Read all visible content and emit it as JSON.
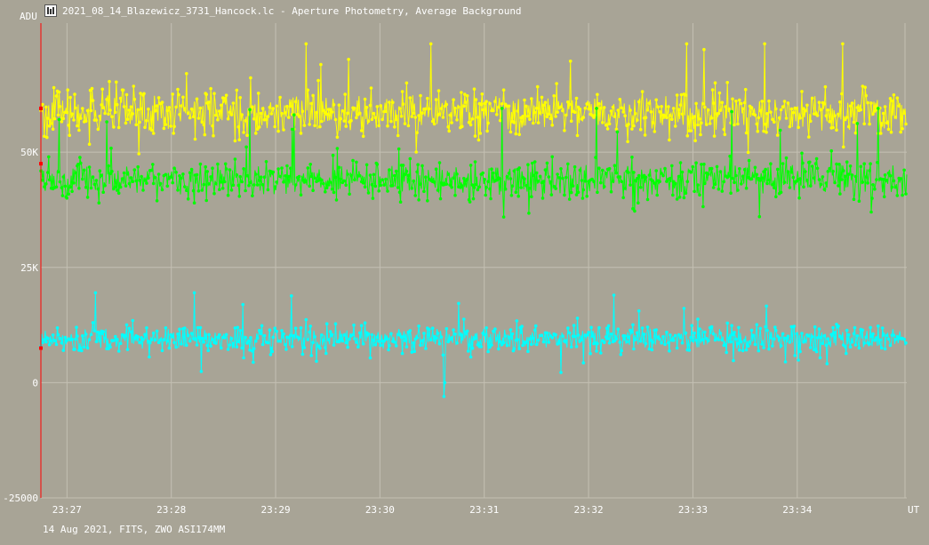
{
  "window": {
    "title": "2021_08_14_Blazewicz_3731_Hancock.lc - Aperture Photometry, Average Background",
    "icon": "lightcurve-app-icon"
  },
  "footer": {
    "text": "14 Aug 2021, FITS, ZWO ASI174MM"
  },
  "chart_data": {
    "type": "line",
    "title": "",
    "ylabel": "ADU",
    "xlabel": "UT",
    "ylim": [
      -25000,
      78000
    ],
    "xlim": [
      "23:26:45",
      "23:35:03"
    ],
    "y_ticks": [
      {
        "value": 50000,
        "label": "50K"
      },
      {
        "value": 25000,
        "label": "25K"
      },
      {
        "value": 0,
        "label": "0"
      },
      {
        "value": -25000,
        "label": "-25000"
      }
    ],
    "x_ticks": [
      "23:27",
      "23:28",
      "23:29",
      "23:30",
      "23:31",
      "23:32",
      "23:33",
      "23:34"
    ],
    "grid": true,
    "series": [
      {
        "color": "#ffff00",
        "mean": 58500,
        "scatter": 4300,
        "min": 47500,
        "max": 73500
      },
      {
        "color": "#00ff00",
        "mean": 44000,
        "scatter": 3600,
        "min": 32500,
        "max": 59500
      },
      {
        "color": "#00ffff",
        "mean": 9500,
        "scatter": 2500,
        "min": -3000,
        "max": 19500
      }
    ],
    "events": [
      {
        "series_index": 2,
        "time": "23:30:37",
        "value": -3000
      }
    ],
    "markers": {
      "color": "#ff0000",
      "values": [
        59500,
        47500,
        7500
      ]
    }
  }
}
